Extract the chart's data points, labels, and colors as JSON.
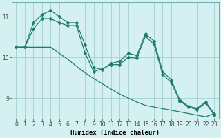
{
  "xlabel": "Humidex (Indice chaleur)",
  "background_color": "#d4f0f0",
  "grid_color": "#aad4d4",
  "line_color": "#1e7a70",
  "x_values": [
    0,
    1,
    2,
    3,
    4,
    5,
    6,
    7,
    8,
    9,
    10,
    11,
    12,
    13,
    14,
    15,
    16,
    17,
    18,
    19,
    20,
    21,
    22,
    23
  ],
  "line1_y": [
    10.25,
    10.25,
    10.85,
    11.05,
    11.15,
    11.0,
    10.85,
    10.85,
    10.3,
    9.75,
    9.7,
    9.85,
    9.9,
    10.1,
    10.05,
    10.58,
    10.4,
    9.65,
    9.45,
    8.95,
    8.8,
    8.75,
    8.9,
    8.62
  ],
  "line2_y": [
    10.25,
    10.25,
    10.25,
    10.25,
    10.25,
    10.1,
    9.95,
    9.78,
    9.62,
    9.48,
    9.35,
    9.22,
    9.1,
    9.0,
    8.9,
    8.82,
    8.78,
    8.74,
    8.7,
    8.66,
    8.62,
    8.58,
    8.54,
    8.62
  ],
  "line3_y": [
    10.25,
    10.25,
    10.7,
    10.95,
    10.95,
    10.85,
    10.78,
    10.78,
    10.1,
    9.65,
    9.72,
    9.82,
    9.82,
    10.0,
    9.98,
    10.52,
    10.32,
    9.58,
    9.38,
    8.92,
    8.78,
    8.72,
    8.88,
    8.58
  ],
  "ylim": [
    8.5,
    11.35
  ],
  "yticks": [
    9,
    10,
    11
  ],
  "xlim": [
    -0.5,
    23.5
  ],
  "xticks": [
    0,
    1,
    2,
    3,
    4,
    5,
    6,
    7,
    8,
    9,
    10,
    11,
    12,
    13,
    14,
    15,
    16,
    17,
    18,
    19,
    20,
    21,
    22,
    23
  ]
}
